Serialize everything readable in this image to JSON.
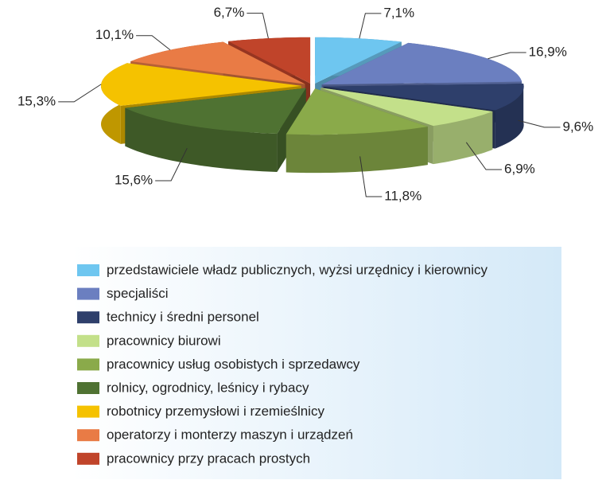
{
  "chart_data": {
    "type": "pie",
    "categories": [
      "przedstawiciele władz publicznych, wyżsi urzędnicy i kierownicy",
      "specjaliści",
      "technicy i średni personel",
      "pracownicy biurowi",
      "pracownicy usług osobistych i sprzedawcy",
      "rolnicy, ogrodnicy, leśnicy i rybacy",
      "robotnicy przemysłowi i rzemieślnicy",
      "operatorzy i monterzy maszyn i urządzeń",
      "pracownicy przy pracach prostych"
    ],
    "values": [
      7.1,
      16.9,
      9.6,
      6.9,
      11.8,
      15.6,
      15.3,
      10.1,
      6.7
    ],
    "value_labels": [
      "7,1%",
      "16,9%",
      "9,6%",
      "6,9%",
      "11,8%",
      "15,6%",
      "15,3%",
      "10,1%",
      "6,7%"
    ],
    "colors": [
      "#6ec6f0",
      "#6b7fc0",
      "#2e3f6b",
      "#c3e08a",
      "#8aaa4a",
      "#4f7232",
      "#f5c200",
      "#e97b45",
      "#c0442a"
    ],
    "legend": "bottom"
  }
}
